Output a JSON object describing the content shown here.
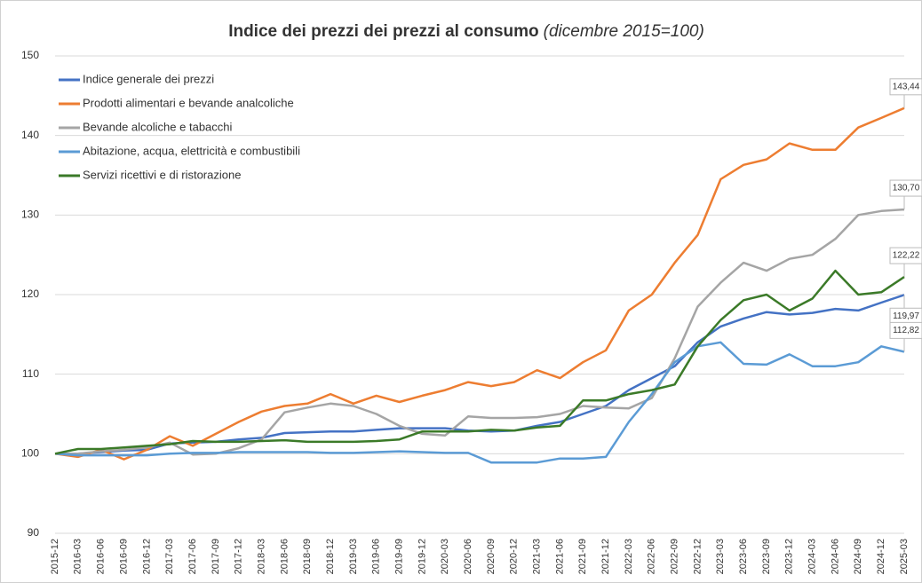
{
  "chart_data": {
    "type": "line",
    "title": "Indice dei prezzi dei prezzi al consumo",
    "subtitle": "(dicembre 2015=100)",
    "categories": [
      "2015-12",
      "2016-03",
      "2016-06",
      "2016-09",
      "2016-12",
      "2017-03",
      "2017-06",
      "2017-09",
      "2017-12",
      "2018-03",
      "2018-06",
      "2018-09",
      "2018-12",
      "2019-03",
      "2019-06",
      "2019-09",
      "2019-12",
      "2020-03",
      "2020-06",
      "2020-09",
      "2020-12",
      "2021-03",
      "2021-06",
      "2021-09",
      "2021-12",
      "2022-03",
      "2022-06",
      "2022-09",
      "2022-12",
      "2023-03",
      "2023-06",
      "2023-09",
      "2023-12",
      "2024-03",
      "2024-06",
      "2024-09",
      "2024-12",
      "2025-03"
    ],
    "series": [
      {
        "name": "Indice generale dei prezzi",
        "color": "#4472c4",
        "values": [
          100,
          100,
          100.2,
          100.4,
          100.5,
          101.3,
          101.4,
          101.5,
          101.8,
          102,
          102.6,
          102.7,
          102.8,
          102.8,
          103,
          103.2,
          103.2,
          103.2,
          102.9,
          102.8,
          102.9,
          103.5,
          104,
          105,
          106,
          108,
          109.5,
          111,
          114,
          116,
          117,
          117.8,
          117.5,
          117.7,
          118.2,
          118,
          119,
          119.97
        ],
        "value_labels": [
          null,
          null,
          null,
          null,
          null,
          null,
          null,
          null,
          null,
          null,
          null,
          null,
          null,
          null,
          null,
          null,
          null,
          null,
          null,
          null,
          null,
          null,
          null,
          null,
          null,
          null,
          null,
          null,
          null,
          null,
          null,
          null,
          null,
          null,
          null,
          null,
          null,
          "119,97"
        ]
      },
      {
        "name": "Prodotti alimentari e bevande analcoliche",
        "color": "#ed7d31",
        "values": [
          100,
          99.6,
          100.5,
          99.3,
          100.5,
          102.2,
          101,
          102.5,
          104,
          105.3,
          106,
          106.3,
          107.5,
          106.3,
          107.3,
          106.5,
          107.3,
          108,
          109,
          108.5,
          109,
          110.5,
          109.5,
          111.5,
          113,
          118,
          120,
          124,
          127.5,
          134.5,
          136.3,
          137,
          139,
          138.2,
          138.2,
          141,
          142.2,
          143.44
        ],
        "value_labels": [
          null,
          null,
          null,
          null,
          null,
          null,
          null,
          null,
          null,
          null,
          null,
          null,
          null,
          null,
          null,
          null,
          null,
          null,
          null,
          null,
          null,
          null,
          null,
          null,
          null,
          null,
          null,
          null,
          null,
          null,
          null,
          null,
          null,
          null,
          null,
          null,
          null,
          "143,44"
        ]
      },
      {
        "name": "Bevande alcoliche e tabacchi",
        "color": "#a5a5a5",
        "values": [
          100,
          100,
          100.3,
          100.5,
          100.8,
          101.4,
          99.9,
          100,
          100.7,
          101.8,
          105.2,
          105.8,
          106.3,
          106,
          105,
          103.5,
          102.5,
          102.3,
          104.7,
          104.5,
          104.5,
          104.6,
          105,
          106,
          105.8,
          105.7,
          107,
          112,
          118.5,
          121.5,
          124,
          123,
          124.5,
          125,
          127,
          130,
          130.5,
          130.7
        ],
        "value_labels": [
          null,
          null,
          null,
          null,
          null,
          null,
          null,
          null,
          null,
          null,
          null,
          null,
          null,
          null,
          null,
          null,
          null,
          null,
          null,
          null,
          null,
          null,
          null,
          null,
          null,
          null,
          null,
          null,
          null,
          null,
          null,
          null,
          null,
          null,
          null,
          null,
          null,
          "130,70"
        ]
      },
      {
        "name": "Abitazione, acqua, elettricità e combustibili",
        "color": "#5b9bd5",
        "values": [
          100,
          99.8,
          99.8,
          99.8,
          99.8,
          100,
          100.1,
          100.1,
          100.2,
          100.2,
          100.2,
          100.2,
          100.1,
          100.1,
          100.2,
          100.3,
          100.2,
          100.1,
          100.1,
          98.9,
          98.9,
          98.9,
          99.4,
          99.4,
          99.6,
          104,
          107.5,
          111.5,
          113.5,
          114,
          111.3,
          111.2,
          112.5,
          111,
          111,
          111.5,
          113.5,
          112.82
        ],
        "value_labels": [
          null,
          null,
          null,
          null,
          null,
          null,
          null,
          null,
          null,
          null,
          null,
          null,
          null,
          null,
          null,
          null,
          null,
          null,
          null,
          null,
          null,
          null,
          null,
          null,
          null,
          null,
          null,
          null,
          null,
          null,
          null,
          null,
          null,
          null,
          null,
          null,
          null,
          "112,82"
        ]
      },
      {
        "name": "Servizi ricettivi e di ristorazione",
        "color": "#3b7a28",
        "values": [
          100,
          100.6,
          100.6,
          100.8,
          101,
          101.2,
          101.6,
          101.5,
          101.5,
          101.6,
          101.7,
          101.5,
          101.5,
          101.5,
          101.6,
          101.8,
          102.8,
          102.8,
          102.8,
          103,
          102.9,
          103.3,
          103.5,
          106.7,
          106.7,
          107.5,
          108,
          108.7,
          113.5,
          116.8,
          119.3,
          120,
          118,
          119.5,
          123,
          120,
          120.3,
          122.22
        ],
        "value_labels": [
          null,
          null,
          null,
          null,
          null,
          null,
          null,
          null,
          null,
          null,
          null,
          null,
          null,
          null,
          null,
          null,
          null,
          null,
          null,
          null,
          null,
          null,
          null,
          null,
          null,
          null,
          null,
          null,
          null,
          null,
          null,
          null,
          null,
          null,
          null,
          null,
          null,
          "122,22"
        ]
      }
    ],
    "ylim": [
      90,
      150
    ],
    "yticks": [
      90,
      100,
      110,
      120,
      130,
      140,
      150
    ],
    "grid": true,
    "legend": "top-left"
  }
}
